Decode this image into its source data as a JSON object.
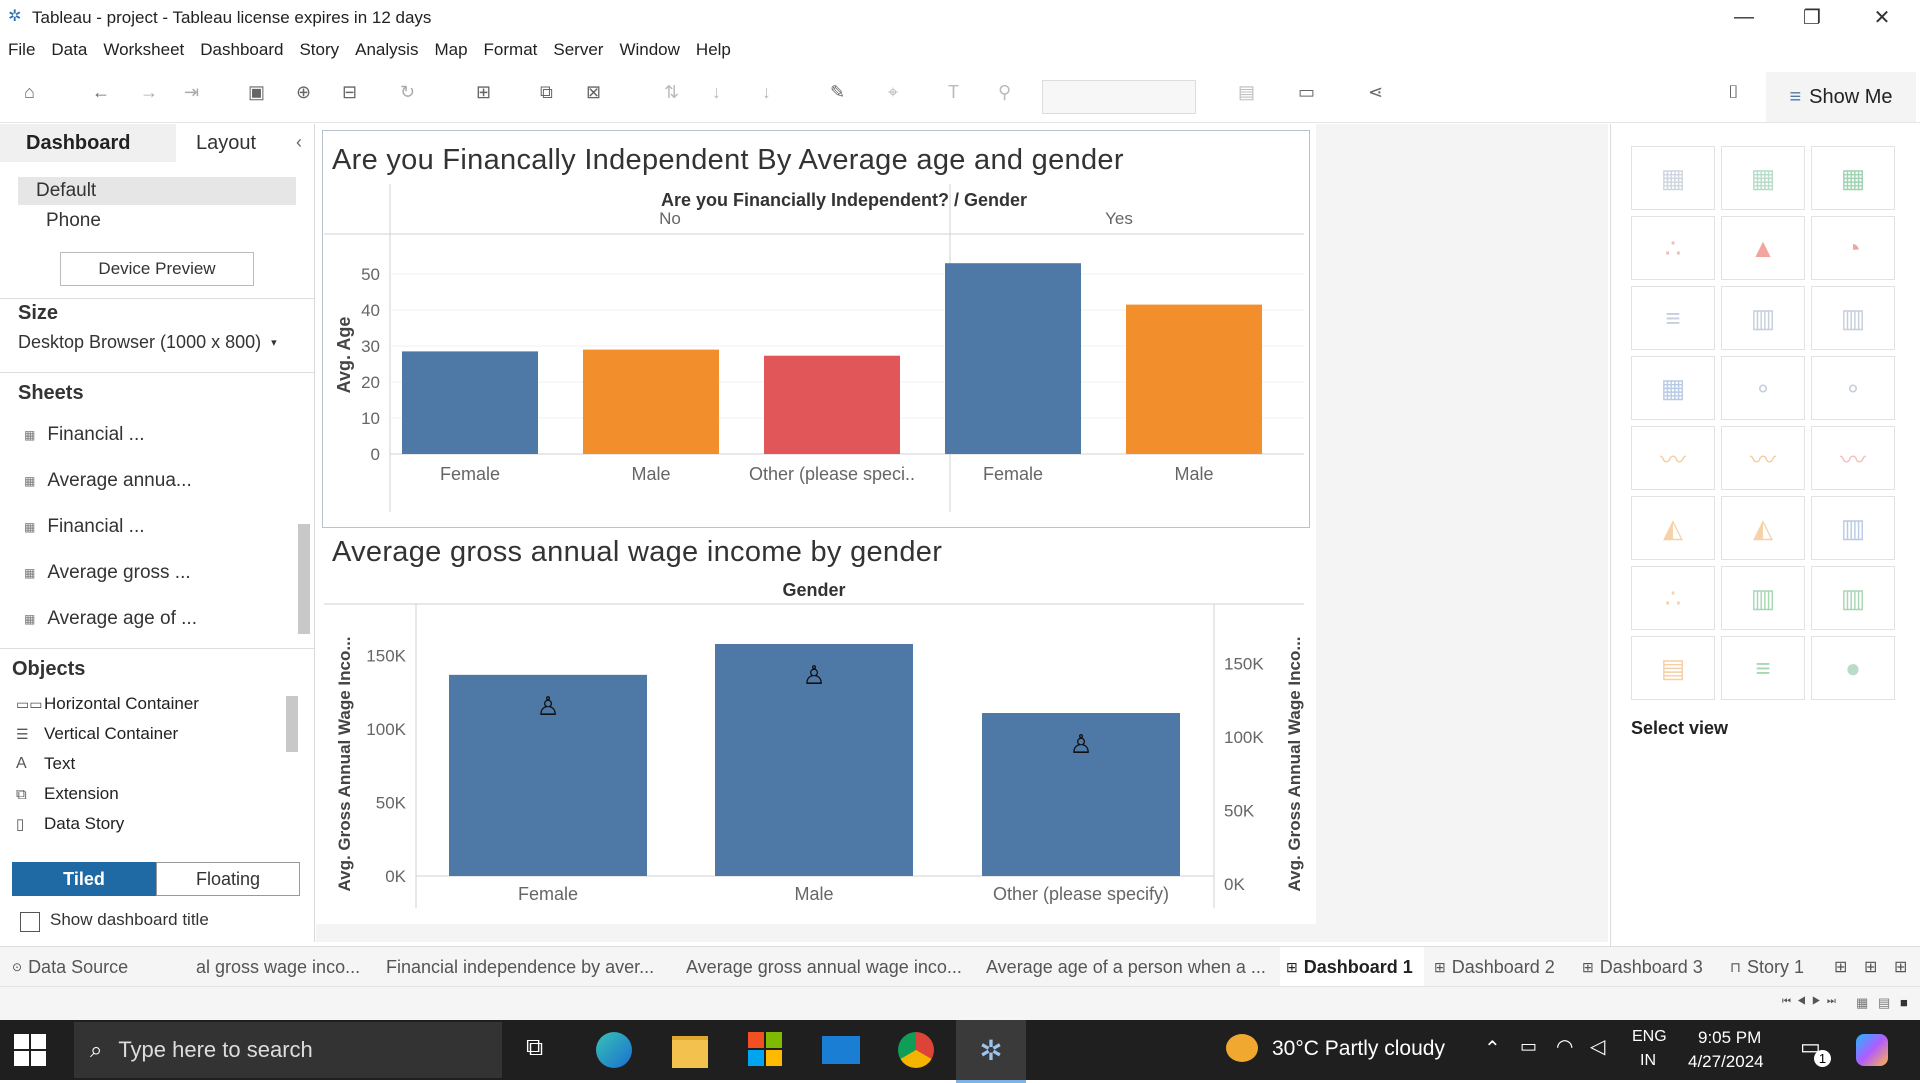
{
  "window": {
    "title": "Tableau - project - Tableau license expires in 12 days",
    "minimize": "—",
    "restore": "❐",
    "close": "✕"
  },
  "menu": [
    "File",
    "Data",
    "Worksheet",
    "Dashboard",
    "Story",
    "Analysis",
    "Map",
    "Format",
    "Server",
    "Window",
    "Help"
  ],
  "toolbar": {
    "show_me_label": "Show Me"
  },
  "left_panel": {
    "tabs": {
      "dashboard": "Dashboard",
      "layout": "Layout",
      "collapse": "‹"
    },
    "devices": [
      "Default",
      "Phone"
    ],
    "device_preview": "Device Preview",
    "size_heading": "Size",
    "size_value": "Desktop Browser (1000 x 800)",
    "sheets_heading": "Sheets",
    "sheets": [
      "Financial ...",
      "Average annua...",
      "Financial ...",
      "Average gross ...",
      "Average age of ..."
    ],
    "objects_heading": "Objects",
    "objects": [
      {
        "label": "Horizontal Container",
        "icon": "horizontal-container-icon"
      },
      {
        "label": "Vertical Container",
        "icon": "vertical-container-icon"
      },
      {
        "label": "Text",
        "icon": "text-icon"
      },
      {
        "label": "Extension",
        "icon": "extension-icon"
      },
      {
        "label": "Data Story",
        "icon": "data-story-icon"
      }
    ],
    "tiled": "Tiled",
    "floating": "Floating",
    "show_title": "Show dashboard title"
  },
  "chart1": {
    "title": "Are you Financally Independent By Average age and gender",
    "header": "Are you Financially Independent?  /  Gender",
    "panes": [
      "No",
      "Yes"
    ],
    "ylabel": "Avg. Age",
    "yticks": [
      "50",
      "40",
      "30",
      "20",
      "10",
      "0"
    ]
  },
  "chart2": {
    "title": "Average gross annual wage income by gender",
    "header": "Gender",
    "ylabel": "Avg. Gross Annual Wage Inco...",
    "yticks": [
      "150K",
      "100K",
      "50K",
      "0K"
    ],
    "yticks_right": [
      "150K",
      "100K",
      "50K",
      "0K"
    ]
  },
  "chart_data": [
    {
      "type": "bar",
      "title": "Are you Financally Independent By Average age and gender",
      "xlabel": "Are you Financially Independent? / Gender",
      "ylabel": "Avg. Age",
      "ylim": [
        0,
        55
      ],
      "categories": [
        "No / Female",
        "No / Male",
        "No / Other (please speci..",
        "Yes / Female",
        "Yes / Male"
      ],
      "labels": [
        "Female",
        "Male",
        "Other (please speci..",
        "Female",
        "Male"
      ],
      "values": [
        28.5,
        29,
        27.3,
        53,
        41.5
      ],
      "colors": [
        "#4e79a7",
        "#f28e2b",
        "#e15759",
        "#4e79a7",
        "#f28e2b"
      ],
      "grid": true
    },
    {
      "type": "bar",
      "title": "Average gross annual wage income by gender",
      "xlabel": "Gender",
      "ylabel": "Avg. Gross Annual Wage Inco...",
      "ylim": [
        0,
        158000
      ],
      "categories": [
        "Female",
        "Male",
        "Other (please specify)"
      ],
      "values": [
        137000,
        158000,
        111000
      ],
      "color": "#4e79a7",
      "grid": false
    }
  ],
  "showme": {
    "select_view": "Select view"
  },
  "tabs": [
    {
      "label": "Data Source",
      "icon": "database-icon"
    },
    {
      "label": "al gross wage inco...",
      "icon": ""
    },
    {
      "label": "Financial independence by aver...",
      "icon": ""
    },
    {
      "label": "Average gross annual wage inco...",
      "icon": ""
    },
    {
      "label": "Average age of a person when a ...",
      "icon": ""
    },
    {
      "label": "Dashboard 1",
      "icon": "dashboard-icon"
    },
    {
      "label": "Dashboard 2",
      "icon": "dashboard-icon"
    },
    {
      "label": "Dashboard 3",
      "icon": "dashboard-icon"
    },
    {
      "label": "Story 1",
      "icon": "story-icon"
    }
  ],
  "taskbar": {
    "search_placeholder": "Type here to search",
    "weather": "30°C  Partly cloudy",
    "lang1": "ENG",
    "lang2": "IN",
    "time": "9:05 PM",
    "date": "4/27/2024",
    "notif": "1"
  }
}
